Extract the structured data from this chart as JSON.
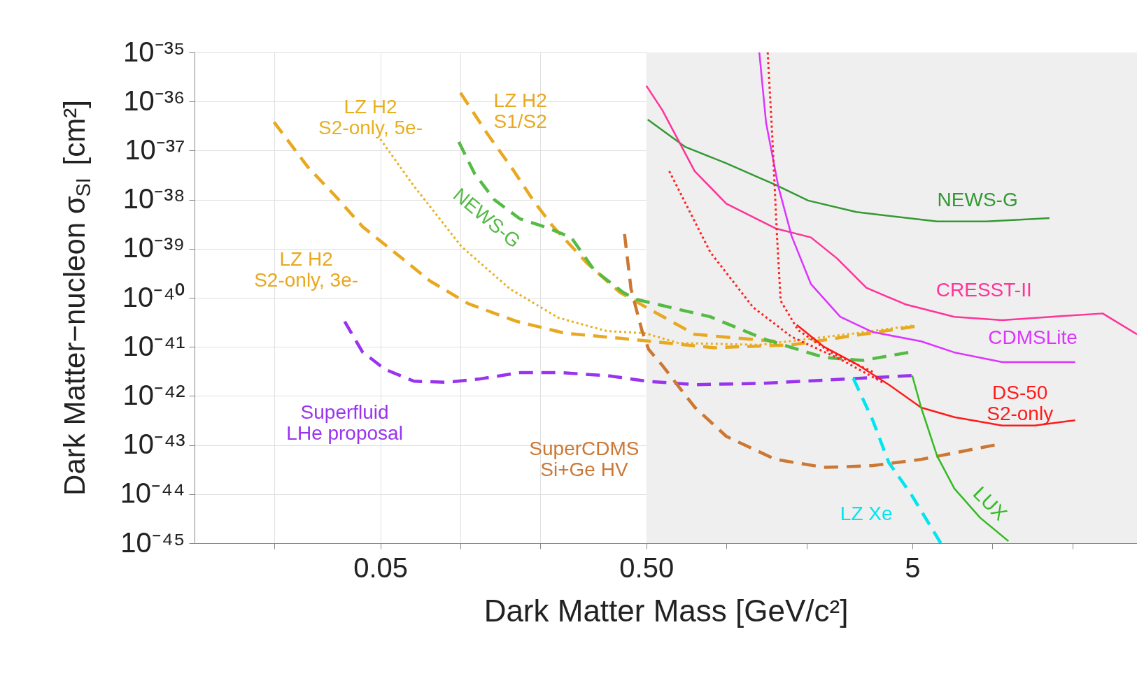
{
  "chart_data": {
    "type": "line",
    "xlabel": "Dark Matter Mass [GeV/c²]",
    "ylabel": "Dark Matter−nucleon σ$_{SI}$ [cm²]",
    "log": "xy",
    "grid": true,
    "xlim": [
      0.01,
      35
    ],
    "ylim": [
      1e-45,
      1e-35
    ],
    "xticks": [
      {
        "value": 0.02,
        "label": null
      },
      {
        "value": 0.05,
        "label": "0.05"
      },
      {
        "value": 0.1,
        "label": null
      },
      {
        "value": 0.2,
        "label": null
      },
      {
        "value": 0.5,
        "label": "0.50"
      },
      {
        "value": 1,
        "label": null
      },
      {
        "value": 2,
        "label": null
      },
      {
        "value": 5,
        "label": "5"
      },
      {
        "value": 10,
        "label": null
      },
      {
        "value": 20,
        "label": null
      }
    ],
    "yticks": [
      {
        "value": 1e-45,
        "label": "10⁻⁴⁵"
      },
      {
        "value": 1e-44,
        "label": "10⁻⁴⁴"
      },
      {
        "value": 1e-43,
        "label": "10⁻⁴³"
      },
      {
        "value": 1e-42,
        "label": "10⁻⁴²"
      },
      {
        "value": 1e-41,
        "label": "10⁻⁴¹"
      },
      {
        "value": 1e-40,
        "label": "10⁻⁴⁰"
      },
      {
        "value": 1e-39,
        "label": "10⁻³⁹"
      },
      {
        "value": 1e-38,
        "label": "10⁻³⁸"
      },
      {
        "value": 1e-37,
        "label": "10⁻³⁷"
      },
      {
        "value": 1e-36,
        "label": "10⁻³⁶"
      },
      {
        "value": 1e-35,
        "label": "10⁻³⁵"
      }
    ],
    "bands": [
      {
        "axis": "x",
        "from": 0.5,
        "to": 35,
        "color": "#efefef"
      }
    ],
    "series": [
      {
        "name": "LZ H2\nS2-only, 3e-",
        "line_style": "dashed",
        "color": "#e8a820",
        "x": [
          0.0199,
          0.0267,
          0.0343,
          0.0429,
          0.0574,
          0.0769,
          0.107,
          0.163,
          0.247,
          0.397,
          0.9,
          1.76,
          5.1
        ],
        "values": [
          3.8e-37,
          4.6e-38,
          1.1e-38,
          2.8e-39,
          7.9e-40,
          2.2e-40,
          7.6e-41,
          3.3e-41,
          1.9e-41,
          1.5e-41,
          9.6e-42,
          1.1e-41,
          2.6e-41
        ]
      },
      {
        "name": "LZ H2\nS2-only, 5e-",
        "line_style": "dotted",
        "color": "#e8b020",
        "x": [
          0.05,
          0.0668,
          0.101,
          0.154,
          0.234,
          0.355,
          0.495,
          0.66,
          1.33,
          3.08,
          5
        ],
        "values": [
          1.7e-37,
          1.9e-38,
          1.1e-39,
          1.5e-40,
          3.9e-41,
          2.1e-41,
          1.9e-41,
          1.2e-41,
          1.1e-41,
          1.9e-41,
          2.7e-41
        ]
      },
      {
        "name": "LZ H2\nS1/S2",
        "line_style": "dashed",
        "color": "#e8a820",
        "x": [
          0.1,
          0.127,
          0.158,
          0.187,
          0.221,
          0.3,
          0.397,
          0.51,
          0.76,
          1.53
        ],
        "values": [
          1.5e-36,
          2.1e-37,
          4e-38,
          1e-38,
          3e-39,
          5e-40,
          1.3e-40,
          6e-41,
          1.8e-41,
          1.3e-41
        ]
      },
      {
        "name": "NEWS-G",
        "line_style": "dashed",
        "color": "#55bb44",
        "x": [
          0.0986,
          0.113,
          0.134,
          0.167,
          0.215,
          0.261,
          0.318,
          0.408,
          0.458,
          0.87,
          1.41,
          2.33,
          3.26,
          4.83
        ],
        "values": [
          1.5e-37,
          3.4e-38,
          1e-38,
          4.1e-39,
          2.6e-39,
          1.7e-39,
          3.7e-40,
          1.3e-40,
          9.3e-41,
          4.1e-41,
          1.4e-41,
          6.1e-42,
          5.3e-42,
          7.7e-42
        ]
      },
      {
        "name": "Superfluid\nLHe proposal",
        "line_style": "dashed",
        "color": "#9933ee",
        "x": [
          0.0367,
          0.0428,
          0.052,
          0.0668,
          0.0883,
          0.117,
          0.168,
          0.234,
          0.355,
          0.5,
          0.76,
          1.33,
          2.33,
          4.97
        ],
        "values": [
          3.3e-41,
          7.9e-42,
          3.5e-42,
          2e-42,
          1.9e-42,
          2.2e-42,
          3e-42,
          3e-42,
          2.6e-42,
          2e-42,
          1.7e-42,
          1.8e-42,
          2.1e-42,
          2.6e-42
        ]
      },
      {
        "name": "SuperCDMS\nSi+Ge HV",
        "line_style": "dashed",
        "color": "#cc7733",
        "x": [
          0.414,
          0.438,
          0.482,
          0.51,
          0.574,
          0.76,
          1.0,
          1.53,
          2.33,
          3.55,
          5.4,
          10.2
        ],
        "values": [
          2e-39,
          1.5e-40,
          2.1e-41,
          8.9e-42,
          4.2e-42,
          5.9e-43,
          1.5e-43,
          5.1e-44,
          3.5e-44,
          3.8e-44,
          5.1e-44,
          1e-43
        ]
      },
      {
        "name": "LZ Xe",
        "line_style": "dashed",
        "color": "#00e5f0",
        "x": [
          3.0,
          3.55,
          4.08,
          4.97,
          6.4
        ],
        "values": [
          2.3e-42,
          3.2e-43,
          4.4e-44,
          9.6e-45,
          1e-45
        ]
      },
      {
        "name": "NEWS-G",
        "line_style": "solid",
        "color": "#339933",
        "x": [
          0.506,
          0.698,
          1.0,
          1.53,
          2.03,
          3.08,
          6.2,
          9.5,
          16.4
        ],
        "values": [
          4.3e-37,
          1.2e-37,
          5.5e-38,
          2e-38,
          9.6e-39,
          5.6e-39,
          3.6e-39,
          3.6e-39,
          4.2e-39
        ]
      },
      {
        "name": "CRESST-II",
        "line_style": "solid",
        "color": "#ff3399",
        "x": [
          0.5,
          0.574,
          0.76,
          1.0,
          1.53,
          2.08,
          2.61,
          3.36,
          4.7,
          7.2,
          10.9,
          16.6,
          26,
          35
        ],
        "values": [
          2.1e-36,
          6.7e-37,
          3.8e-38,
          8.3e-39,
          2.6e-39,
          1.7e-39,
          6.3e-40,
          1.6e-40,
          7.4e-41,
          4.1e-41,
          3.5e-41,
          4.1e-41,
          4.8e-41,
          1.8e-41
        ]
      },
      {
        "name": "CDMSLite",
        "line_style": "solid",
        "color": "#dd33ff",
        "x": [
          1.33,
          1.41,
          1.57,
          1.76,
          2.08,
          2.68,
          3.55,
          5.4,
          7.2,
          10.9,
          20.5
        ],
        "values": [
          1e-35,
          3.7e-37,
          1.8e-38,
          1.8e-39,
          1.9e-40,
          4.1e-41,
          2e-41,
          1.3e-41,
          7.7e-42,
          4.9e-42,
          4.9e-42
        ]
      },
      {
        "line_style": "dotted",
        "color": "#ff2020",
        "x": [
          1.43,
          1.49,
          1.55,
          1.6,
          1.86,
          2.47,
          3.55
        ],
        "values": [
          1e-35,
          1.7e-37,
          1.8e-39,
          8.7e-41,
          2.2e-41,
          7.7e-42,
          3.1e-42
        ]
      },
      {
        "line_style": "dotted",
        "color": "#ff2020",
        "x": [
          0.61,
          0.87,
          1.26,
          1.76,
          2.68,
          3.86
        ],
        "values": [
          3.8e-38,
          8.5e-40,
          6.4e-41,
          1.6e-41,
          5.6e-42,
          1.9e-42
        ]
      },
      {
        "name": "DS-50\nS2-only",
        "line_style": "solid",
        "color": "#ff1a1a",
        "x": [
          1.84,
          2.33,
          3.08,
          4.08,
          5.4,
          7.2,
          10.9,
          14.4,
          20.5
        ],
        "values": [
          2.8e-41,
          1e-41,
          4.5e-42,
          1.7e-42,
          5.8e-43,
          3.7e-43,
          2.5e-43,
          2.5e-43,
          3.2e-43
        ]
      },
      {
        "name": "LUX",
        "line_style": "solid",
        "color": "#33bb22",
        "x": [
          5.0,
          5.4,
          6.2,
          7.2,
          9.0,
          11.5
        ],
        "values": [
          2.6e-42,
          5.8e-43,
          6e-44,
          1.3e-44,
          3.3e-45,
          1.1e-45
        ]
      }
    ]
  }
}
